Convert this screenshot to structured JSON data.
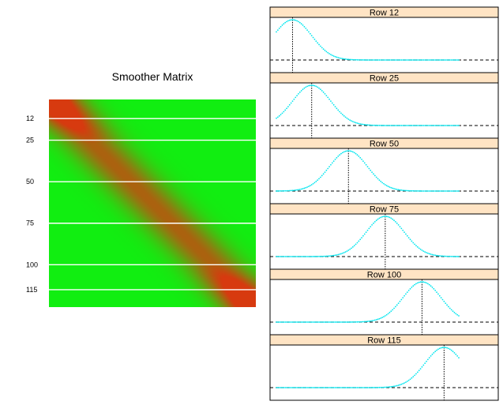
{
  "chart_data": [
    {
      "type": "heatmap",
      "title": "Smoother Matrix",
      "rows": 125,
      "cols": 125,
      "marked_rows": [
        12,
        25,
        50,
        75,
        100,
        115
      ],
      "row_tick_labels": [
        "12",
        "25",
        "50",
        "75",
        "100",
        "115"
      ],
      "colors": {
        "low": "#11ee11",
        "high": "#d73a0f",
        "line": "#ffffff"
      }
    },
    {
      "type": "scatter",
      "panels": [
        {
          "label": "Row 12",
          "row": 12
        },
        {
          "label": "Row 25",
          "row": 25
        },
        {
          "label": "Row 50",
          "row": 50
        },
        {
          "label": "Row 75",
          "row": 75
        },
        {
          "label": "Row 100",
          "row": 100
        },
        {
          "label": "Row 115",
          "row": 115
        }
      ],
      "x_range": [
        1,
        125
      ],
      "y_reference": 0,
      "colors": {
        "points": "#00e5ee",
        "strip": "#ffe4c4"
      }
    }
  ]
}
